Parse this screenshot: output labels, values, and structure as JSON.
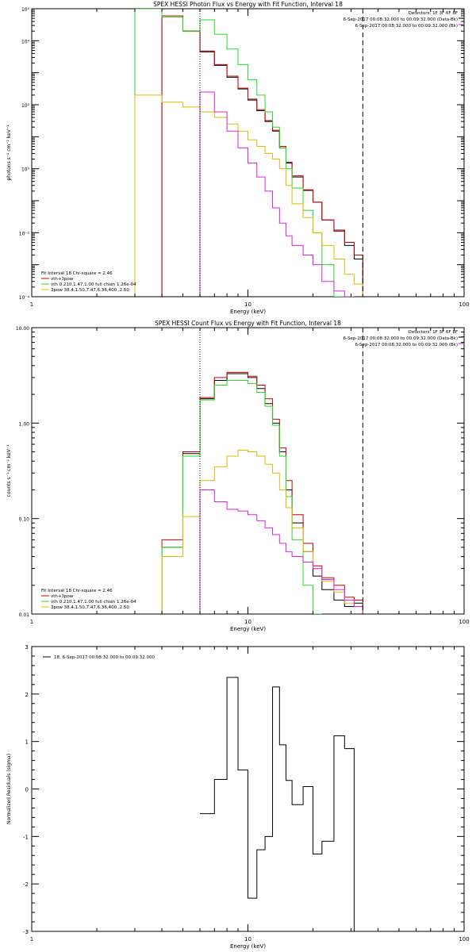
{
  "colors": {
    "data": "#000000",
    "total": "#cc0000",
    "vth": "#22dd22",
    "bpow": "#ddbb00",
    "bk": "#dd22dd"
  },
  "chart_data": [
    {
      "type": "line",
      "title": "SPEX HESSI Photon Flux vs Energy with Fit Function, Interval 18",
      "xlabel": "Energy (keV)",
      "ylabel": "photons s⁻¹ cm⁻² keV⁻¹",
      "xscale": "log",
      "yscale": "log",
      "xlim": [
        1,
        100
      ],
      "ylim": [
        0.0001,
        100000
      ],
      "xticks": [
        "1",
        "10",
        "100"
      ],
      "yticks": [
        "10⁻⁴",
        "10⁻²",
        "10⁰",
        "10²",
        "10⁴",
        "10⁵"
      ],
      "header": [
        "Detectors: 1F 3F 6F 8F",
        "6-Sep-2017 00:08:32.000 to 00:09:32.000 (Data-Bk)",
        "6-Sep-2017 00:08:32.000 to 00:09:32.000 (Bk)"
      ],
      "legend": [
        "Fit Interval 18   Chi-square = 2.46",
        "vth+3pow",
        "vth 0.210,1.47,1.00  full chian 1.26e-04",
        "3pow 38.4,1.50,7.47,6.36,400.,2.50"
      ],
      "edges": [
        3.0,
        4.0,
        5.0,
        6.0,
        7.0,
        8.0,
        9.0,
        10.0,
        11.0,
        12.0,
        13.0,
        14.0,
        15.0,
        16.0,
        18.0,
        20.0,
        22.0,
        25.0,
        28.0,
        31.0,
        34.0
      ],
      "vlines": [
        {
          "x": 6.0,
          "style": "dotted"
        },
        {
          "x": 34.0,
          "style": "dashed"
        }
      ],
      "series": [
        {
          "key": "data",
          "color_key": "data",
          "values": [
            null,
            60000,
            20000,
            4500,
            1700,
            720,
            310,
            140,
            65,
            30,
            15,
            4.5,
            1.5,
            0.55,
            0.21,
            0.09,
            0.025,
            0.012,
            0.004,
            0.0015
          ]
        },
        {
          "key": "total",
          "color_key": "total",
          "values": [
            null,
            60000,
            20000,
            4800,
            1800,
            780,
            330,
            150,
            70,
            32,
            16,
            5.0,
            1.6,
            0.6,
            0.22,
            0.09,
            0.025,
            0.011,
            0.005,
            0.002
          ]
        },
        {
          "key": "vth",
          "color_key": "vth",
          "values": [
            100000,
            55000,
            19500,
            45000,
            16000,
            5500,
            1800,
            600,
            200,
            60,
            20,
            4.5,
            1.0,
            0.25,
            0.05,
            0.01,
            0.001,
            0.0001,
            null,
            null
          ]
        },
        {
          "key": "bpow",
          "color_key": "bpow",
          "values": [
            200,
            120,
            85,
            60,
            40,
            25,
            15,
            8,
            5,
            3,
            2,
            1.0,
            0.3,
            0.08,
            0.03,
            0.01,
            0.004,
            0.0015,
            0.0005,
            0.00025
          ]
        },
        {
          "key": "bk",
          "color_key": "bk",
          "values": [
            null,
            null,
            null,
            250,
            60,
            15,
            4.5,
            1.5,
            0.55,
            0.2,
            0.06,
            0.02,
            0.008,
            0.004,
            0.002,
            0.001,
            0.0003,
            0.00015,
            0.0001,
            null
          ]
        }
      ]
    },
    {
      "type": "line",
      "title": "SPEX HESSI Count Flux vs Energy with Fit Function, Interval 18",
      "xlabel": "Energy (keV)",
      "ylabel": "counts s⁻¹ cm⁻² keV⁻¹",
      "xscale": "log",
      "yscale": "log",
      "xlim": [
        1,
        100
      ],
      "ylim": [
        0.01,
        10
      ],
      "xticks": [
        "1",
        "10",
        "100"
      ],
      "yticks": [
        "0.01",
        "0.10",
        "1.00",
        "10.00"
      ],
      "header": [
        "Detectors: 1F 3F 6F 8F",
        "6-Sep-2017 00:08:32.000 to 00:09:32.000 (Data-Bk)",
        "6-Sep-2017 00:08:32.000 to 00:09:32.000 (Bk)"
      ],
      "legend": [
        "Fit Interval 18   Chi-square = 2.46",
        "vth+3pow",
        "vth 0.210,1.47,1.00  full chian 1.26e-04",
        "3pow 38.4,1.50,7.47,6.36,400.,2.50"
      ],
      "edges": [
        4.0,
        5.0,
        6.0,
        7.0,
        8.0,
        9.0,
        10.0,
        11.0,
        12.0,
        13.0,
        14.0,
        15.0,
        16.0,
        18.0,
        20.0,
        22.0,
        25.0,
        28.0,
        31.0,
        34.0
      ],
      "vlines": [
        {
          "x": 6.0,
          "style": "dotted"
        },
        {
          "x": 34.0,
          "style": "dashed"
        }
      ],
      "series": [
        {
          "key": "data",
          "color_key": "data",
          "values": [
            0.05,
            0.48,
            1.8,
            2.8,
            3.3,
            3.3,
            3.0,
            2.3,
            1.6,
            1.0,
            0.5,
            0.2,
            0.09,
            0.045,
            0.025,
            0.018,
            0.014,
            0.012,
            0.013
          ]
        },
        {
          "key": "total",
          "color_key": "total",
          "values": [
            0.06,
            0.5,
            1.85,
            3.0,
            3.4,
            3.4,
            3.1,
            2.5,
            1.8,
            1.1,
            0.55,
            0.25,
            0.11,
            0.055,
            0.032,
            0.024,
            0.02,
            0.015,
            0.014
          ]
        },
        {
          "key": "vth",
          "color_key": "vth",
          "values": [
            0.05,
            0.45,
            1.75,
            2.5,
            2.8,
            2.8,
            2.6,
            2.1,
            1.5,
            0.95,
            0.45,
            0.17,
            0.06,
            0.02,
            0.01,
            null,
            null,
            null,
            null
          ]
        },
        {
          "key": "bpow",
          "color_key": "bpow",
          "values": [
            0.04,
            0.105,
            0.25,
            0.35,
            0.45,
            0.52,
            0.5,
            0.45,
            0.37,
            0.3,
            0.2,
            0.13,
            0.08,
            0.045,
            0.03,
            0.022,
            0.017,
            0.013,
            0.012
          ]
        },
        {
          "key": "bk",
          "color_key": "bk",
          "values": [
            null,
            null,
            0.2,
            0.15,
            0.125,
            0.12,
            0.11,
            0.095,
            0.08,
            0.068,
            0.055,
            0.045,
            0.04,
            0.035,
            0.03,
            0.023,
            0.018,
            0.014,
            0.012
          ]
        }
      ]
    },
    {
      "type": "line",
      "title": "",
      "xlabel": "Energy (keV)",
      "ylabel": "Normalized Residuals (sigma)",
      "xscale": "log",
      "yscale": "linear",
      "xlim": [
        1,
        100
      ],
      "ylim": [
        -3,
        3
      ],
      "xticks": [
        "1",
        "10",
        "100"
      ],
      "yticks": [
        "-3",
        "-2",
        "-1",
        "0",
        "1",
        "2",
        "3"
      ],
      "legend": [
        "18,  6-Sep-2017 00:08:32.000 to 00:09:32.000"
      ],
      "edges": [
        6.0,
        7.0,
        8.0,
        9.0,
        10.0,
        11.0,
        12.0,
        13.0,
        14.0,
        15.0,
        16.0,
        18.0,
        20.0,
        22.0,
        25.0,
        28.0,
        31.0,
        34.0
      ],
      "series": [
        {
          "key": "residuals",
          "color_key": "data",
          "values": [
            -0.52,
            0.2,
            2.35,
            0.4,
            -2.3,
            -1.28,
            -1.0,
            2.15,
            0.93,
            0.18,
            -0.33,
            0.05,
            -1.37,
            -1.1,
            1.12,
            0.85,
            null
          ]
        }
      ]
    }
  ]
}
